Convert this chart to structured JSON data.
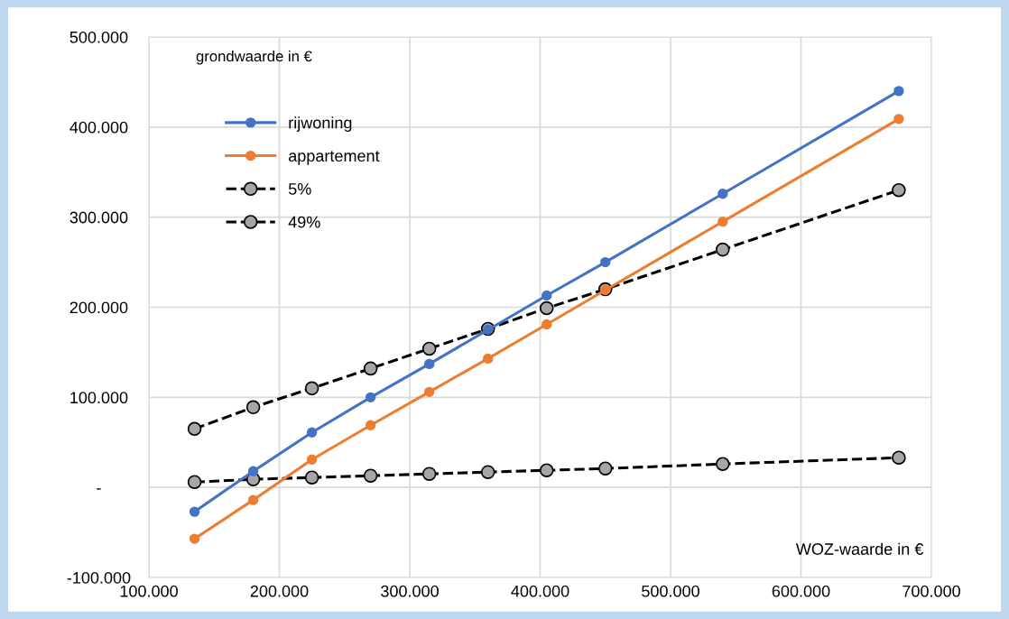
{
  "chart_data": {
    "type": "line",
    "xlabel": "WOZ-waarde in €",
    "ylabel": "grondwaarde in €",
    "x": [
      135000,
      180000,
      225000,
      270000,
      315000,
      360000,
      405000,
      450000,
      540000,
      675000
    ],
    "series": [
      {
        "name": "rijwoning",
        "color": "#4472c4",
        "line_style": "solid",
        "values": [
          -27000,
          18000,
          61000,
          100000,
          137000,
          175000,
          213000,
          250000,
          326000,
          440000
        ]
      },
      {
        "name": "appartement",
        "color": "#ed7d31",
        "line_style": "solid",
        "values": [
          -57000,
          -14000,
          31000,
          69000,
          106000,
          143000,
          181000,
          219000,
          295000,
          409000
        ]
      },
      {
        "name": "5%",
        "color": "#000000",
        "line_style": "dashed",
        "values": [
          6000,
          9000,
          11000,
          13000,
          15000,
          17000,
          19000,
          21000,
          26000,
          33000
        ]
      },
      {
        "name": "49%",
        "color": "#000000",
        "line_style": "dashed",
        "values": [
          65000,
          89000,
          110000,
          132000,
          154000,
          176000,
          199000,
          220000,
          264000,
          330000
        ]
      }
    ],
    "xlim": [
      100000,
      700000
    ],
    "xticks": [
      {
        "value": 100000,
        "label": "100.000"
      },
      {
        "value": 200000,
        "label": "200.000"
      },
      {
        "value": 300000,
        "label": "300.000"
      },
      {
        "value": 400000,
        "label": "400.000"
      },
      {
        "value": 500000,
        "label": "500.000"
      },
      {
        "value": 600000,
        "label": "600.000"
      },
      {
        "value": 700000,
        "label": "700.000"
      }
    ],
    "ylim": [
      -100000,
      500000
    ],
    "yticks": [
      {
        "value": -100000,
        "label": "-100.000"
      },
      {
        "value": 0,
        "label": "-"
      },
      {
        "value": 100000,
        "label": "100.000"
      },
      {
        "value": 200000,
        "label": "200.000"
      },
      {
        "value": 300000,
        "label": "300.000"
      },
      {
        "value": 400000,
        "label": "400.000"
      },
      {
        "value": 500000,
        "label": "500.000"
      }
    ],
    "grid": true,
    "legend": "top left",
    "marker": "circle"
  }
}
